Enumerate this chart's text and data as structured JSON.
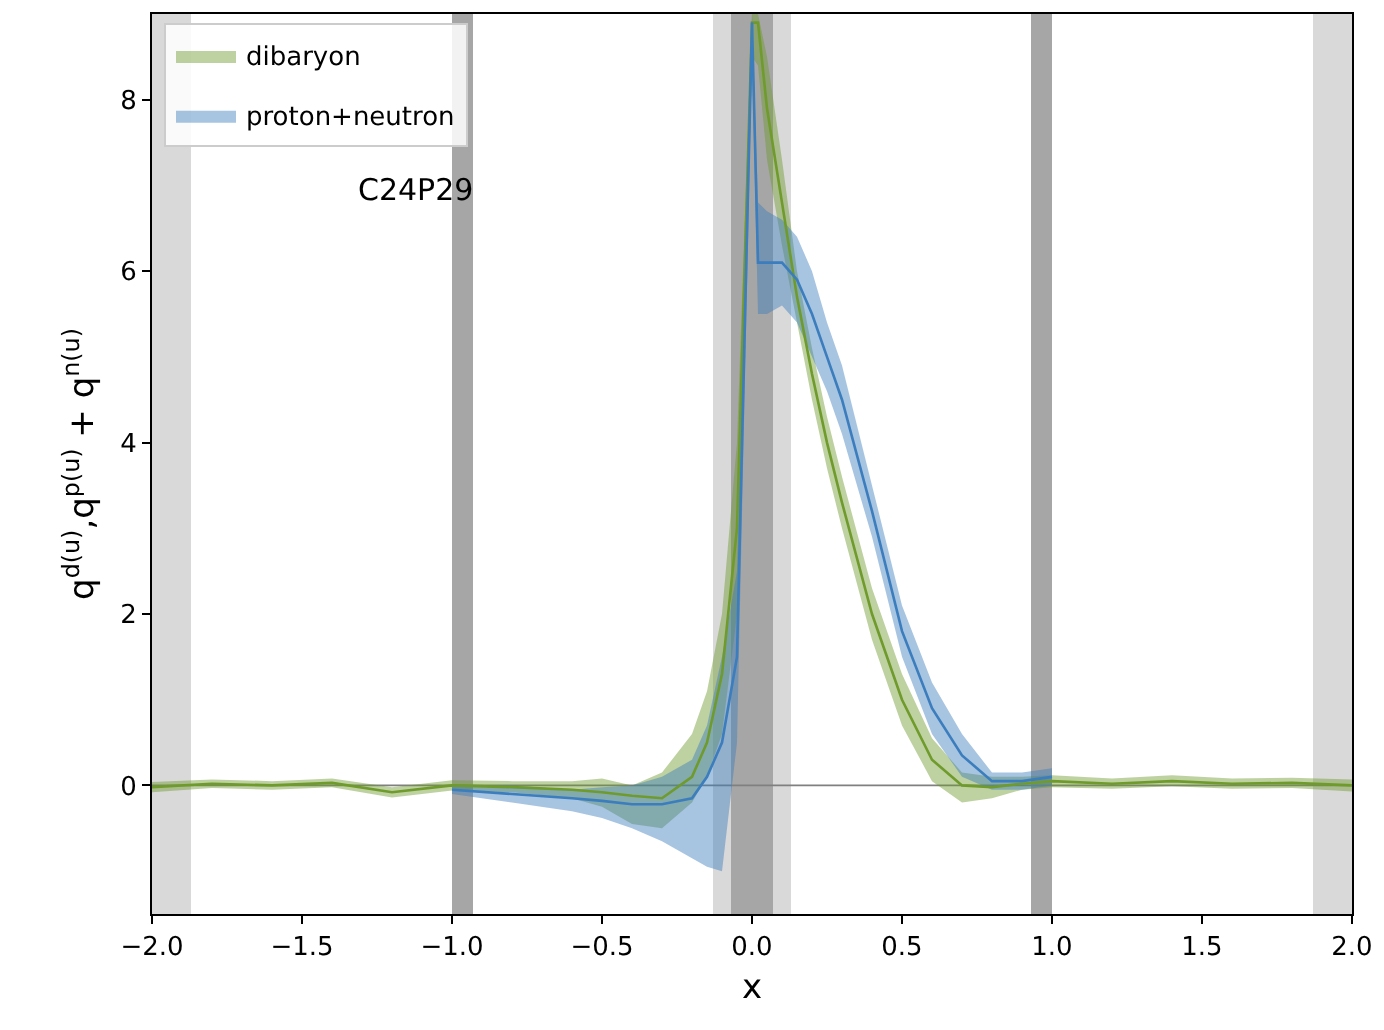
{
  "chart_data": {
    "type": "line",
    "xlabel": "x",
    "ylabel": "q$^{d(u)}$,q$^{p(u)}$ + q$^{n(u)}$",
    "annotations": [
      "C24P29"
    ],
    "xlim": [
      -2,
      2
    ],
    "xticks": [
      {
        "value": -2,
        "label": "−2.0"
      },
      {
        "value": -1.5,
        "label": "−1.5"
      },
      {
        "value": -1,
        "label": "−1.0"
      },
      {
        "value": -0.5,
        "label": "−0.5"
      },
      {
        "value": 0,
        "label": "0.0"
      },
      {
        "value": 0.5,
        "label": "0.5"
      },
      {
        "value": 1,
        "label": "1.0"
      },
      {
        "value": 1.5,
        "label": "1.5"
      },
      {
        "value": 2,
        "label": "2.0"
      }
    ],
    "ylim": [
      -1.5,
      9
    ],
    "yticks": [
      0,
      2,
      4,
      6,
      8
    ],
    "grid": false,
    "legend": "top left",
    "marker": "none",
    "line_style": "solid",
    "ref_lines": [
      {
        "axis": "y",
        "value": 0,
        "color": "#808080"
      }
    ],
    "bands": [
      {
        "axis": "x",
        "from": -2,
        "to": -1.87,
        "color": "#d9d9d9"
      },
      {
        "axis": "x",
        "from": 1.87,
        "to": 2,
        "color": "#d9d9d9"
      },
      {
        "axis": "x",
        "from": -0.13,
        "to": 0.13,
        "color": "#d9d9d9"
      },
      {
        "axis": "x",
        "from": -1.0,
        "to": -0.93,
        "color": "#a6a6a6"
      },
      {
        "axis": "x",
        "from": 0.93,
        "to": 1.0,
        "color": "#a6a6a6"
      },
      {
        "axis": "x",
        "from": -0.07,
        "to": 0.07,
        "color": "#a6a6a6"
      }
    ],
    "series": [
      {
        "name": "dibaryon",
        "color": "#6f9a2c",
        "x": [
          -2,
          -1.8,
          -1.6,
          -1.4,
          -1.2,
          -1.0,
          -0.8,
          -0.6,
          -0.5,
          -0.4,
          -0.3,
          -0.2,
          -0.15,
          -0.1,
          -0.05,
          0,
          0.02,
          0.05,
          0.1,
          0.15,
          0.2,
          0.25,
          0.3,
          0.4,
          0.5,
          0.6,
          0.7,
          0.8,
          0.9,
          1.0,
          1.2,
          1.4,
          1.6,
          1.8,
          2.0
        ],
        "values": [
          -0.02,
          0.02,
          0.0,
          0.03,
          -0.08,
          0.0,
          -0.02,
          -0.05,
          -0.08,
          -0.12,
          -0.15,
          0.1,
          0.5,
          1.3,
          3.0,
          8.9,
          8.9,
          7.9,
          6.8,
          5.7,
          4.8,
          4.0,
          3.3,
          2.0,
          1.0,
          0.3,
          0.0,
          -0.02,
          0.02,
          0.05,
          0.02,
          0.05,
          0.02,
          0.03,
          0.0
        ],
        "lower": [
          -0.08,
          -0.03,
          -0.05,
          -0.02,
          -0.14,
          -0.06,
          -0.08,
          -0.15,
          -0.25,
          -0.45,
          -0.5,
          -0.2,
          0.1,
          0.6,
          2.0,
          8.5,
          8.4,
          7.3,
          6.3,
          5.4,
          4.5,
          3.7,
          3.0,
          1.7,
          0.7,
          0.05,
          -0.2,
          -0.15,
          -0.05,
          -0.02,
          -0.04,
          -0.01,
          -0.04,
          -0.03,
          -0.07
        ],
        "upper": [
          0.04,
          0.07,
          0.05,
          0.08,
          -0.02,
          0.06,
          0.05,
          0.05,
          0.08,
          0.0,
          0.15,
          0.6,
          1.1,
          2.0,
          4.0,
          9.0,
          9.0,
          8.5,
          7.3,
          6.0,
          5.1,
          4.3,
          3.6,
          2.3,
          1.3,
          0.55,
          0.15,
          0.1,
          0.1,
          0.12,
          0.08,
          0.12,
          0.08,
          0.09,
          0.07
        ]
      },
      {
        "name": "proton+neutron",
        "color": "#3b7dbd",
        "x": [
          -1.0,
          -0.8,
          -0.6,
          -0.5,
          -0.4,
          -0.3,
          -0.2,
          -0.15,
          -0.1,
          -0.05,
          0,
          0.02,
          0.05,
          0.1,
          0.15,
          0.2,
          0.25,
          0.3,
          0.4,
          0.5,
          0.6,
          0.7,
          0.8,
          0.9,
          1.0
        ],
        "values": [
          -0.05,
          -0.1,
          -0.15,
          -0.18,
          -0.22,
          -0.22,
          -0.15,
          0.1,
          0.5,
          1.5,
          8.9,
          6.1,
          6.1,
          6.1,
          5.9,
          5.5,
          5.0,
          4.5,
          3.2,
          1.8,
          0.9,
          0.35,
          0.05,
          0.05,
          0.1
        ],
        "lower": [
          -0.1,
          -0.2,
          -0.3,
          -0.38,
          -0.5,
          -0.65,
          -0.85,
          -0.95,
          -1.0,
          0.5,
          8.5,
          5.5,
          5.5,
          5.6,
          5.4,
          5.0,
          4.6,
          4.1,
          2.9,
          1.5,
          0.6,
          0.1,
          -0.05,
          -0.05,
          0.0
        ],
        "upper": [
          0.0,
          0.0,
          -0.05,
          -0.02,
          0.0,
          0.1,
          0.3,
          0.7,
          1.5,
          2.5,
          9.0,
          6.8,
          6.7,
          6.6,
          6.4,
          6.0,
          5.4,
          4.9,
          3.5,
          2.1,
          1.2,
          0.6,
          0.15,
          0.15,
          0.2
        ]
      }
    ]
  }
}
